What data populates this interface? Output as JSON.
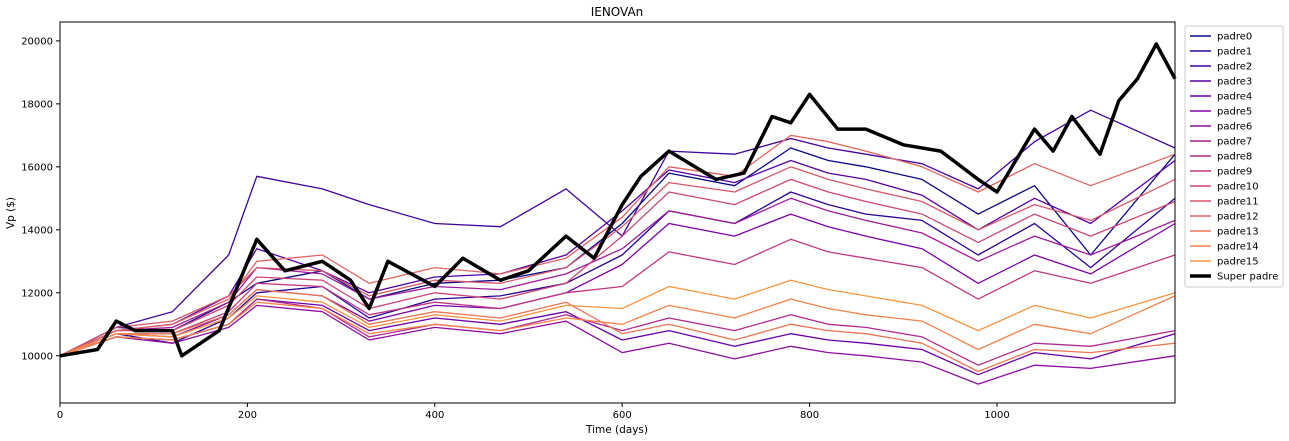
{
  "chart_data": {
    "type": "line",
    "title": "IENOVAn",
    "xlabel": "Time (days)",
    "ylabel": "Vp ($)",
    "xlim": [
      0,
      1190
    ],
    "ylim": [
      8500,
      20600
    ],
    "xticks": [
      0,
      200,
      400,
      600,
      800,
      1000
    ],
    "yticks": [
      10000,
      12000,
      14000,
      16000,
      18000,
      20000
    ],
    "grid": false,
    "legend_position": "outside-top-right",
    "series": [
      {
        "name": "padre0",
        "color": "#0d0887",
        "x": [
          0,
          60,
          120,
          180,
          210,
          280,
          330,
          400,
          470,
          540,
          600,
          650,
          720,
          780,
          820,
          860,
          920,
          980,
          1040,
          1100,
          1190
        ],
        "y": [
          10000,
          10900,
          10800,
          11700,
          12300,
          12700,
          11800,
          12300,
          12400,
          12800,
          14200,
          15800,
          15400,
          16600,
          16200,
          16000,
          15600,
          14500,
          15400,
          13200,
          16400
        ]
      },
      {
        "name": "padre1",
        "color": "#2a0593",
        "x": [
          0,
          60,
          120,
          180,
          210,
          280,
          330,
          400,
          470,
          540,
          600,
          650,
          720,
          780,
          820,
          860,
          920,
          980,
          1040,
          1100,
          1190
        ],
        "y": [
          10000,
          10700,
          10400,
          11200,
          12000,
          12200,
          11200,
          11800,
          11900,
          12300,
          13200,
          14600,
          14200,
          15200,
          14800,
          14500,
          14300,
          13200,
          14200,
          12800,
          15000
        ]
      },
      {
        "name": "padre2",
        "color": "#41049d",
        "x": [
          0,
          60,
          120,
          180,
          210,
          280,
          330,
          400,
          470,
          540,
          600,
          650,
          720,
          780,
          820,
          860,
          920,
          980,
          1040,
          1100,
          1190
        ],
        "y": [
          10000,
          10900,
          11400,
          13200,
          15700,
          15300,
          14800,
          14200,
          14100,
          15300,
          13800,
          16500,
          16400,
          16900,
          16600,
          16400,
          16100,
          15300,
          16800,
          17800,
          16600
        ]
      },
      {
        "name": "padre3",
        "color": "#5601a4",
        "x": [
          0,
          60,
          120,
          180,
          210,
          280,
          330,
          400,
          470,
          540,
          600,
          650,
          720,
          780,
          820,
          860,
          920,
          980,
          1040,
          1100,
          1190
        ],
        "y": [
          10000,
          10800,
          11000,
          11900,
          13400,
          12700,
          12000,
          12500,
          12600,
          13200,
          14600,
          15900,
          15500,
          16200,
          15800,
          15600,
          15100,
          14000,
          15000,
          14200,
          16200
        ]
      },
      {
        "name": "padre4",
        "color": "#6a00a8",
        "x": [
          0,
          60,
          120,
          180,
          210,
          280,
          330,
          400,
          470,
          540,
          600,
          650,
          720,
          780,
          820,
          860,
          920,
          980,
          1040,
          1100,
          1190
        ],
        "y": [
          10000,
          10600,
          10500,
          11000,
          11800,
          11600,
          10800,
          11200,
          11000,
          11400,
          10500,
          10800,
          10300,
          10700,
          10500,
          10400,
          10200,
          9400,
          10100,
          9900,
          10700
        ]
      },
      {
        "name": "padre5",
        "color": "#7e03a8",
        "x": [
          0,
          60,
          120,
          180,
          210,
          280,
          330,
          400,
          470,
          540,
          600,
          650,
          720,
          780,
          820,
          860,
          920,
          980,
          1040,
          1100,
          1190
        ],
        "y": [
          10000,
          10700,
          10600,
          11300,
          12100,
          11900,
          11100,
          11600,
          11500,
          12000,
          12900,
          14200,
          13800,
          14500,
          14100,
          13800,
          13400,
          12300,
          13200,
          12600,
          14200
        ]
      },
      {
        "name": "padre6",
        "color": "#8f0da4",
        "x": [
          0,
          60,
          120,
          180,
          210,
          280,
          330,
          400,
          470,
          540,
          600,
          650,
          720,
          780,
          820,
          860,
          920,
          980,
          1040,
          1100,
          1190
        ],
        "y": [
          10000,
          10600,
          10400,
          10900,
          11600,
          11400,
          10500,
          10900,
          10700,
          11100,
          10100,
          10400,
          9900,
          10300,
          10100,
          10000,
          9800,
          9100,
          9700,
          9600,
          10000
        ]
      },
      {
        "name": "padre7",
        "color": "#a11b9b",
        "x": [
          0,
          60,
          120,
          180,
          210,
          280,
          330,
          400,
          470,
          540,
          600,
          650,
          720,
          780,
          820,
          860,
          920,
          980,
          1040,
          1100,
          1190
        ],
        "y": [
          10000,
          10800,
          10900,
          11700,
          12800,
          12600,
          11800,
          12200,
          12100,
          12600,
          13400,
          14600,
          14200,
          15000,
          14600,
          14300,
          13900,
          13000,
          13800,
          13200,
          14300
        ]
      },
      {
        "name": "padre8",
        "color": "#b12a90",
        "x": [
          0,
          60,
          120,
          180,
          210,
          280,
          330,
          400,
          470,
          540,
          600,
          650,
          720,
          780,
          820,
          860,
          920,
          980,
          1040,
          1100,
          1190
        ],
        "y": [
          10000,
          10600,
          10500,
          11000,
          11800,
          11500,
          10600,
          11000,
          10800,
          11300,
          10800,
          11200,
          10800,
          11300,
          11000,
          10900,
          10600,
          9700,
          10400,
          10300,
          10800
        ]
      },
      {
        "name": "padre9",
        "color": "#bf3984",
        "x": [
          0,
          60,
          120,
          180,
          210,
          280,
          330,
          400,
          470,
          540,
          600,
          650,
          720,
          780,
          820,
          860,
          920,
          980,
          1040,
          1100,
          1190
        ],
        "y": [
          10000,
          10700,
          10700,
          11400,
          12300,
          12200,
          11300,
          11700,
          11500,
          12000,
          12200,
          13300,
          12900,
          13700,
          13300,
          13100,
          12800,
          11800,
          12700,
          12300,
          13200
        ]
      },
      {
        "name": "padre10",
        "color": "#cc4778",
        "x": [
          0,
          60,
          120,
          180,
          210,
          280,
          330,
          400,
          470,
          540,
          600,
          650,
          720,
          780,
          820,
          860,
          920,
          980,
          1040,
          1100,
          1190
        ],
        "y": [
          10000,
          10800,
          10800,
          11600,
          12500,
          12400,
          11500,
          12000,
          11800,
          12300,
          13800,
          15200,
          14800,
          15600,
          15200,
          14900,
          14500,
          13600,
          14500,
          13800,
          14900
        ]
      },
      {
        "name": "padre11",
        "color": "#d8576b",
        "x": [
          0,
          60,
          120,
          180,
          210,
          280,
          330,
          400,
          470,
          540,
          600,
          650,
          720,
          780,
          820,
          860,
          920,
          980,
          1040,
          1100,
          1190
        ],
        "y": [
          10000,
          10900,
          11100,
          11900,
          12800,
          12700,
          11900,
          12400,
          12300,
          12800,
          14100,
          15500,
          15200,
          16000,
          15600,
          15300,
          14900,
          14000,
          14800,
          14300,
          15600
        ]
      },
      {
        "name": "padre12",
        "color": "#e16462",
        "x": [
          0,
          60,
          120,
          180,
          210,
          280,
          330,
          400,
          470,
          540,
          600,
          650,
          720,
          780,
          820,
          860,
          920,
          980,
          1040,
          1100,
          1190
        ],
        "y": [
          10000,
          10800,
          11000,
          11800,
          13000,
          13200,
          12300,
          12800,
          12600,
          13100,
          14400,
          16000,
          15700,
          17000,
          16800,
          16500,
          16000,
          15200,
          16100,
          15400,
          16400
        ]
      },
      {
        "name": "padre13",
        "color": "#eb7655",
        "x": [
          0,
          60,
          120,
          180,
          210,
          280,
          330,
          400,
          470,
          540,
          600,
          650,
          720,
          780,
          820,
          860,
          920,
          980,
          1040,
          1100,
          1190
        ],
        "y": [
          10000,
          10700,
          10700,
          11300,
          12100,
          11900,
          11000,
          11400,
          11200,
          11700,
          10700,
          11000,
          10500,
          11000,
          10800,
          10700,
          10400,
          9500,
          10200,
          10100,
          10400
        ]
      },
      {
        "name": "padre14",
        "color": "#f2844b",
        "x": [
          0,
          60,
          120,
          180,
          210,
          280,
          330,
          400,
          470,
          540,
          600,
          650,
          720,
          780,
          820,
          860,
          920,
          980,
          1040,
          1100,
          1190
        ],
        "y": [
          10000,
          10600,
          10500,
          11000,
          11700,
          11500,
          10700,
          11000,
          10800,
          11200,
          11000,
          11600,
          11200,
          11800,
          11500,
          11300,
          11100,
          10200,
          11000,
          10700,
          11900
        ]
      },
      {
        "name": "padre15",
        "color": "#f89540",
        "x": [
          0,
          60,
          120,
          180,
          210,
          280,
          330,
          400,
          470,
          540,
          600,
          650,
          720,
          780,
          820,
          860,
          920,
          980,
          1040,
          1100,
          1190
        ],
        "y": [
          10000,
          10700,
          10600,
          11200,
          11900,
          11700,
          10900,
          11300,
          11100,
          11600,
          11500,
          12200,
          11800,
          12400,
          12100,
          11900,
          11600,
          10800,
          11600,
          11200,
          12000
        ]
      },
      {
        "name": "Super padre",
        "color": "#000000",
        "x": [
          0,
          40,
          60,
          80,
          120,
          130,
          170,
          210,
          240,
          280,
          310,
          330,
          350,
          400,
          430,
          470,
          500,
          540,
          570,
          600,
          620,
          650,
          700,
          730,
          760,
          780,
          800,
          830,
          860,
          900,
          940,
          980,
          1000,
          1040,
          1060,
          1080,
          1110,
          1130,
          1150,
          1170,
          1190
        ],
        "y": [
          10000,
          10200,
          11100,
          10800,
          10800,
          10000,
          10800,
          13700,
          12700,
          13000,
          12400,
          11500,
          13000,
          12200,
          13100,
          12400,
          12700,
          13800,
          13100,
          14800,
          15700,
          16500,
          15600,
          15800,
          17600,
          17400,
          18300,
          17200,
          17200,
          16700,
          16500,
          15600,
          15200,
          17200,
          16500,
          17600,
          16400,
          18100,
          18800,
          19900,
          18800
        ]
      }
    ]
  }
}
